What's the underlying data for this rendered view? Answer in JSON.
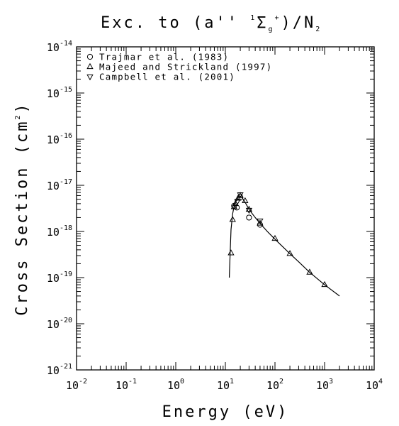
{
  "chart_data": {
    "type": "scatter",
    "title": {
      "prefix": "Exc. to (a'' ",
      "sup1": "1",
      "sigma": "Σ",
      "sub": "g",
      "sup2": "+",
      "suffix": ")/N",
      "sub2": "2"
    },
    "xlabel": "Energy (eV)",
    "ylabel": {
      "text": "Cross Section (cm",
      "sup": "2",
      "end": ")"
    },
    "xscale": "log",
    "yscale": "log",
    "xlim": [
      0.01,
      10000
    ],
    "ylim": [
      1e-21,
      1e-14
    ],
    "x_ticks": [
      {
        "base": "10",
        "exp": "-2"
      },
      {
        "base": "10",
        "exp": "-1"
      },
      {
        "base": "10",
        "exp": "0"
      },
      {
        "base": "10",
        "exp": "1"
      },
      {
        "base": "10",
        "exp": "2"
      },
      {
        "base": "10",
        "exp": "3"
      },
      {
        "base": "10",
        "exp": "4"
      }
    ],
    "y_ticks": [
      {
        "base": "10",
        "exp": "-21"
      },
      {
        "base": "10",
        "exp": "-20"
      },
      {
        "base": "10",
        "exp": "-19"
      },
      {
        "base": "10",
        "exp": "-18"
      },
      {
        "base": "10",
        "exp": "-17"
      },
      {
        "base": "10",
        "exp": "-16"
      },
      {
        "base": "10",
        "exp": "-15"
      },
      {
        "base": "10",
        "exp": "-14"
      }
    ],
    "legend_position": "top-left",
    "series": [
      {
        "name": "Trajmar et al. (1983)",
        "marker": "circle",
        "points": [
          [
            15,
            3.6e-18
          ],
          [
            17,
            3.3e-18
          ],
          [
            20,
            5.5e-18
          ],
          [
            30,
            2e-18
          ],
          [
            50,
            1.4e-18
          ]
        ]
      },
      {
        "name": "Majeed and Strickland (1997)",
        "marker": "triangle-up",
        "points": [
          [
            13,
            3.4e-19
          ],
          [
            14,
            1.8e-18
          ],
          [
            15,
            3.4e-18
          ],
          [
            16,
            4e-18
          ],
          [
            18,
            5.2e-18
          ],
          [
            20,
            6e-18
          ],
          [
            25,
            4.6e-18
          ],
          [
            30,
            3e-18
          ],
          [
            50,
            1.5e-18
          ],
          [
            100,
            7e-19
          ],
          [
            200,
            3.3e-19
          ],
          [
            500,
            1.3e-19
          ],
          [
            1000,
            7e-20
          ]
        ]
      },
      {
        "name": "Campbell et al. (2001)",
        "marker": "triangle-down",
        "points": [
          [
            17.5,
            4.5e-18
          ],
          [
            20,
            6.3e-18
          ],
          [
            30,
            2.9e-18
          ],
          [
            50,
            1.7e-18
          ]
        ]
      },
      {
        "name": "",
        "marker": "line",
        "points": [
          [
            12,
            1e-19
          ],
          [
            12.5,
            3.5e-19
          ],
          [
            13,
            1.1e-18
          ],
          [
            14,
            2.4e-18
          ],
          [
            15,
            3.5e-18
          ],
          [
            16.5,
            4.6e-18
          ],
          [
            18,
            5.4e-18
          ],
          [
            20,
            5.8e-18
          ],
          [
            22,
            5.3e-18
          ],
          [
            25,
            4.3e-18
          ],
          [
            30,
            3e-18
          ],
          [
            40,
            2e-18
          ],
          [
            50,
            1.5e-18
          ],
          [
            70,
            1e-18
          ],
          [
            100,
            6.8e-19
          ],
          [
            200,
            3.3e-19
          ],
          [
            300,
            2.2e-19
          ],
          [
            500,
            1.3e-19
          ],
          [
            1000,
            7e-20
          ],
          [
            2000,
            4e-20
          ]
        ]
      }
    ]
  }
}
